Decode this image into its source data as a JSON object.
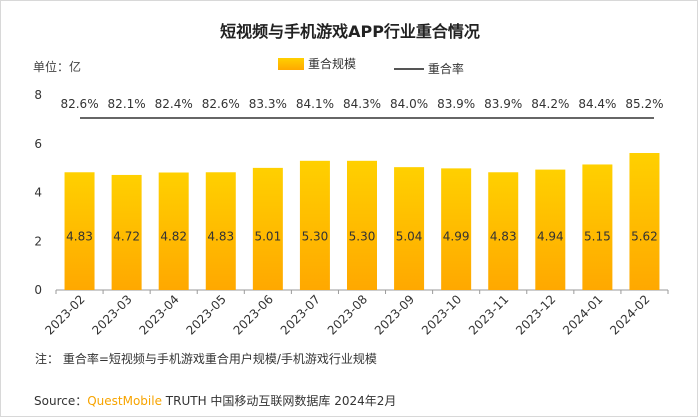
{
  "header": {
    "title": "短视频与手机游戏APP行业重合情况",
    "unit": "单位：亿"
  },
  "legend": {
    "bar_label": "重合规模",
    "line_label": "重合率"
  },
  "footer": {
    "note": "注：   重合率=短视频与手机游戏重合用户规模/手机游戏行业规模",
    "source_prefix": "Source：",
    "source_brand": "QuestMobile",
    "source_rest": " TRUTH 中国移动互联网数据库 2024年2月"
  },
  "colors": {
    "bar_top": "#ffd000",
    "bar_bottom": "#ffa800",
    "line": "#666666",
    "axis": "#9a9a9a"
  },
  "chart_data": {
    "type": "bar",
    "categories": [
      "2023-02",
      "2023-03",
      "2023-04",
      "2023-05",
      "2023-06",
      "2023-07",
      "2023-08",
      "2023-09",
      "2023-10",
      "2023-11",
      "2023-12",
      "2024-01",
      "2024-02"
    ],
    "series": [
      {
        "name": "重合规模",
        "values": [
          4.83,
          4.72,
          4.82,
          4.83,
          5.01,
          5.3,
          5.3,
          5.04,
          4.99,
          4.83,
          4.94,
          5.15,
          5.62
        ]
      },
      {
        "name": "重合率",
        "values_label": [
          "82.6%",
          "82.1%",
          "82.4%",
          "82.6%",
          "83.3%",
          "84.1%",
          "84.3%",
          "84.0%",
          "83.9%",
          "83.9%",
          "84.2%",
          "84.4%",
          "85.2%"
        ]
      }
    ],
    "yticks": [
      0,
      2,
      4,
      6,
      8
    ],
    "ylim": [
      0,
      8
    ],
    "grid": false,
    "legend_position": "top-center"
  }
}
